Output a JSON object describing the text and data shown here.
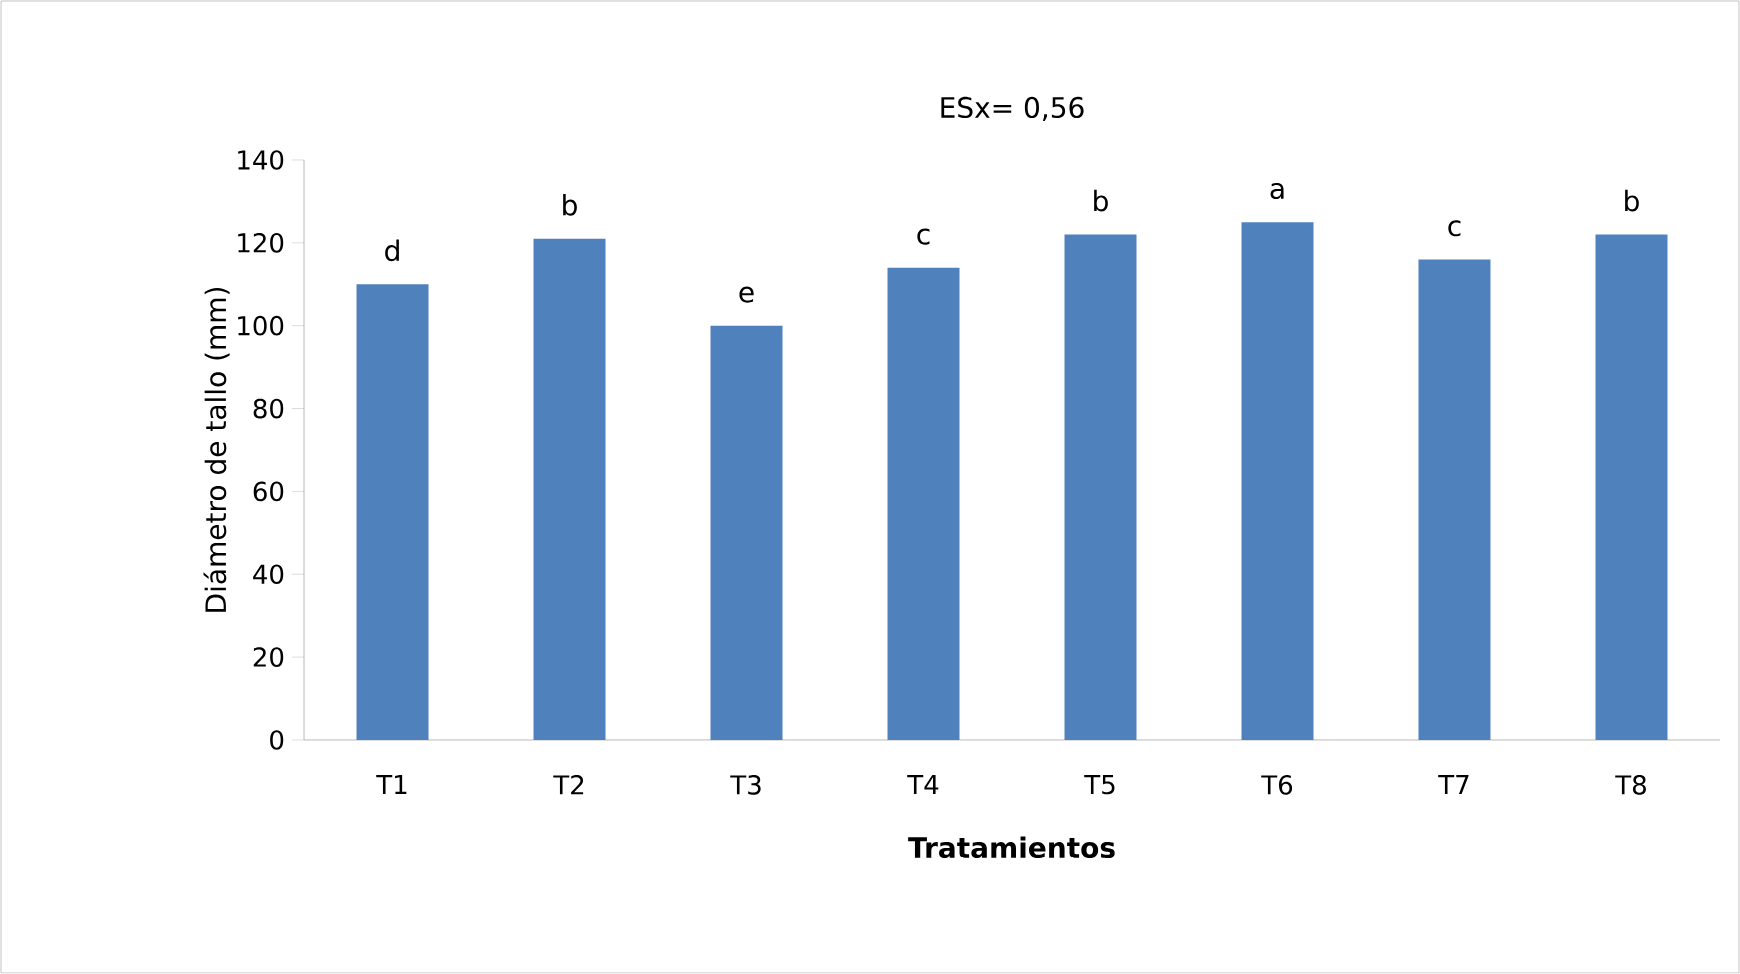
{
  "chart_data": {
    "type": "bar",
    "title": "ESx= 0,56",
    "xlabel": "Tratamientos",
    "ylabel": "Diámetro de tallo (mm)",
    "categories": [
      "T1",
      "T2",
      "T3",
      "T4",
      "T5",
      "T6",
      "T7",
      "T8"
    ],
    "values": [
      110,
      121,
      100,
      114,
      122,
      125,
      116,
      122
    ],
    "value_labels": [
      "d",
      "b",
      "e",
      "c",
      "b",
      "a",
      "c",
      "b"
    ],
    "color": "#4f81bd",
    "ylim": [
      0,
      140
    ],
    "yticks": [
      0,
      20,
      40,
      60,
      80,
      100,
      120,
      140
    ],
    "grid": false
  }
}
